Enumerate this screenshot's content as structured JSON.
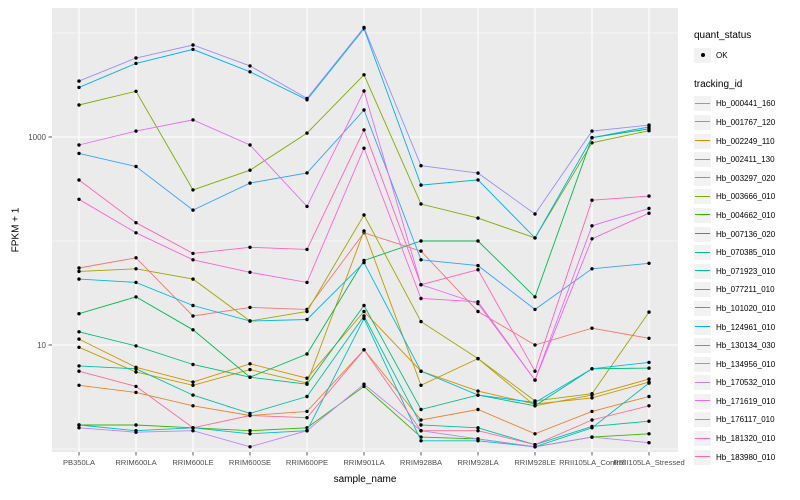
{
  "figure": {
    "background": "#FFFFFF",
    "panel_background": "#EBEBEB",
    "grid_color": "#FFFFFF",
    "tick_label_color": "#4D4D4D",
    "point_color": "#000000"
  },
  "x_axis": {
    "title": "sample_name"
  },
  "y_axis": {
    "title": "FPKM + 1",
    "tick_labels": [
      "1000",
      "10"
    ]
  },
  "legend": {
    "quant_status": {
      "title": "quant_status",
      "items": [
        {
          "label": "OK",
          "symbol": "point"
        }
      ]
    },
    "tracking_id": {
      "title": "tracking_id"
    }
  },
  "chart_data": {
    "type": "line",
    "title": "",
    "xlabel": "sample_name",
    "ylabel": "FPKM + 1",
    "y_scale": "log10",
    "y_ticks": [
      1000,
      10
    ],
    "y_minor_grid": [
      10000,
      100,
      1
    ],
    "ylim": [
      1,
      17000
    ],
    "grid": "on",
    "legend_position": "right",
    "point_shape": "filled-black-circle",
    "categories": [
      "PB350LA",
      "RRIM600LA",
      "RRIM600LE",
      "RRIM600SE",
      "RRIM600PE",
      "RRIM901LA",
      "RRIM928BA",
      "RRIM928LA",
      "RRIM928LE",
      "RRII105LA_Control",
      "RRII105LA_Stressed"
    ],
    "series": [
      {
        "name": "Hb_000441_160",
        "color": "#F8766D",
        "values": [
          55,
          69,
          19,
          23,
          22,
          120,
          80,
          21,
          10,
          14.5,
          11.6
        ]
      },
      {
        "name": "Hb_001767_120",
        "color": "#EA8331",
        "values": [
          4.1,
          3.5,
          2.6,
          2.1,
          2.3,
          9,
          1.9,
          2.4,
          1.4,
          2.3,
          3.2
        ]
      },
      {
        "name": "Hb_002249_110",
        "color": "#D89000",
        "values": [
          11.4,
          6.1,
          4.4,
          6.6,
          4.8,
          21,
          5.6,
          3.6,
          2.7,
          3.1,
          4.4
        ]
      },
      {
        "name": "Hb_002411_130",
        "color": "#C09B00",
        "values": [
          9.5,
          5.5,
          4.1,
          5.8,
          4.3,
          125,
          4.1,
          7.4,
          2.6,
          3.3,
          4.7
        ]
      },
      {
        "name": "Hb_003297_020",
        "color": "#A3A500",
        "values": [
          51,
          54,
          43,
          17,
          21,
          178,
          16.8,
          7.4,
          2.9,
          3.4,
          20.7
        ]
      },
      {
        "name": "Hb_003666_010",
        "color": "#7CAE00",
        "values": [
          2030,
          2750,
          310,
          480,
          1090,
          3960,
          227,
          166,
          107,
          880,
          1150
        ]
      },
      {
        "name": "Hb_004662_010",
        "color": "#39B600",
        "values": [
          1.7,
          1.7,
          1.6,
          1.5,
          1.6,
          4,
          1.3,
          1.25,
          1.05,
          1.3,
          1.4
        ]
      },
      {
        "name": "Hb_007136_020",
        "color": "#00BB4E",
        "values": [
          20,
          29,
          14,
          4.9,
          8.2,
          65,
          100,
          100,
          29,
          985,
          1200
        ]
      },
      {
        "name": "Hb_070385_010",
        "color": "#00BF7D",
        "values": [
          13.4,
          9.8,
          6.5,
          4.9,
          4.2,
          24,
          2.4,
          3.3,
          2.6,
          5.9,
          6.0
        ]
      },
      {
        "name": "Hb_071923_010",
        "color": "#00C1A3",
        "values": [
          6.3,
          5.9,
          3.3,
          2.2,
          3.2,
          19,
          1.7,
          1.6,
          1.1,
          1.65,
          1.85
        ]
      },
      {
        "name": "Hb_077211_010",
        "color": "#00BFC4",
        "values": [
          1.7,
          1.5,
          1.6,
          1.4,
          1.5,
          18,
          1.2,
          1.2,
          1.05,
          1.6,
          4.3
        ]
      },
      {
        "name": "Hb_101020_010",
        "color": "#00BAE0",
        "values": [
          43,
          40,
          24,
          17,
          17.6,
          62,
          5.6,
          3.3,
          2.8,
          5.9,
          6.8
        ]
      },
      {
        "name": "Hb_124961_010",
        "color": "#00B0F6",
        "values": [
          3000,
          5100,
          6960,
          4240,
          2280,
          11000,
          345,
          387,
          107,
          985,
          1250
        ]
      },
      {
        "name": "Hb_130134_030",
        "color": "#35A2FF",
        "values": [
          696,
          520,
          198,
          360,
          452,
          1820,
          66,
          58,
          22,
          54,
          61
        ]
      },
      {
        "name": "Hb_134956_010",
        "color": "#9590FF",
        "values": [
          3450,
          5750,
          7670,
          4830,
          2350,
          11300,
          530,
          450,
          182,
          1140,
          1300
        ]
      },
      {
        "name": "Hb_170532_010",
        "color": "#BF80FF",
        "values": [
          1.6,
          1.45,
          1.5,
          1.05,
          1.5,
          4.2,
          1.5,
          1.25,
          1.05,
          1.3,
          1.15
        ]
      },
      {
        "name": "Hb_171619_010",
        "color": "#E76BF3",
        "values": [
          837,
          1140,
          1460,
          837,
          215,
          2770,
          38,
          25,
          4.6,
          140,
          206
        ]
      },
      {
        "name": "Hb_176117_010",
        "color": "#FA62DB",
        "values": [
          252,
          120,
          66,
          50,
          40,
          780,
          28,
          26,
          4.6,
          105,
          185
        ]
      },
      {
        "name": "Hb_181320_010",
        "color": "#FF62BC",
        "values": [
          386,
          150,
          76,
          87,
          83,
          1170,
          38,
          53,
          5.6,
          247,
          270
        ]
      },
      {
        "name": "Hb_183980_010",
        "color": "#FF6A98",
        "values": [
          5.6,
          4.0,
          1.6,
          2.1,
          2.0,
          9,
          1.5,
          1.5,
          1.1,
          1.9,
          2.6
        ]
      }
    ]
  }
}
